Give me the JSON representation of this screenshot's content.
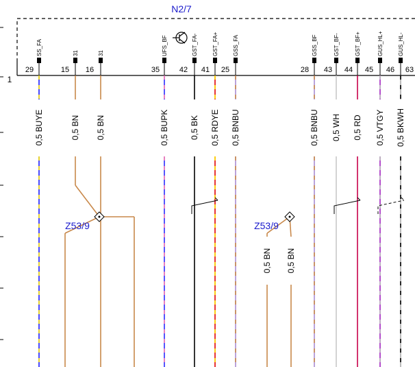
{
  "title": "N2/7",
  "row_number": "1",
  "pin_labels": [
    "SS_FA",
    "31",
    "31",
    "UFS_BF",
    "GST_FA-",
    "GST_FA+",
    "GSS_FA",
    "GSS_BF",
    "GST_BF-",
    "GST_BF+",
    "GUS_HL+",
    "GUS_HL-"
  ],
  "pin_numbers": [
    "29",
    "15",
    "16",
    "35",
    "42",
    "41",
    "25",
    "28",
    "43",
    "44",
    "45",
    "46",
    "63"
  ],
  "wire_labels": [
    "0,5 BUYE",
    "0,5 BN",
    "0,5 BN",
    "0,5 BUPK",
    "0,5 BK",
    "0,5 RDYE",
    "0,5 BNBU",
    "0,5 BNBU",
    "0,5 WH",
    "0,5 RD",
    "0,5 VTGY",
    "0,5 BKWH"
  ],
  "splice_labels": [
    "Z53/9",
    "Z53/9"
  ],
  "lower_wire_labels": [
    "0,5 BN",
    "0,5 BN"
  ]
}
